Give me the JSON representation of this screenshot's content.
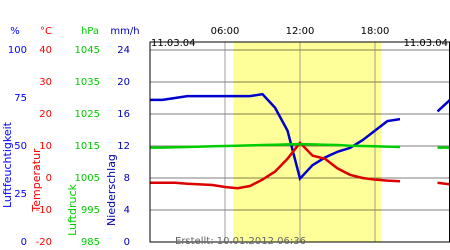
{
  "chart_data": {
    "type": "line",
    "x": [
      0,
      1,
      2,
      3,
      4,
      5,
      6,
      7,
      8,
      9,
      10,
      11,
      12,
      13,
      14,
      15,
      16,
      17,
      18,
      19,
      20,
      21,
      22,
      23,
      24
    ],
    "xlim": [
      0,
      24
    ],
    "xticks": [
      {
        "value": 6,
        "label": "06:00"
      },
      {
        "value": 12,
        "label": "12:00"
      },
      {
        "value": 18,
        "label": "18:00"
      }
    ],
    "date_labels": [
      "11.03.04",
      "11.03.04"
    ],
    "created": "Erstellt: 10.01.2012 06:36",
    "daylight": [
      6.67,
      18.5
    ],
    "axes": [
      {
        "unit": "%",
        "title": "Luftfeuchtigkeit",
        "color": "#0000ff",
        "lim": [
          0,
          100
        ],
        "ticks": [
          0,
          25,
          50,
          75,
          100
        ]
      },
      {
        "unit": "°C",
        "title": "Temperatur",
        "color": "#ff0000",
        "lim": [
          -20,
          40
        ],
        "ticks": [
          -20,
          -10,
          0,
          10,
          20,
          30,
          40
        ]
      },
      {
        "unit": "hPa",
        "title": "Luftdruck",
        "color": "#00cc00",
        "lim": [
          985,
          1045
        ],
        "ticks": [
          985,
          995,
          1005,
          1015,
          1025,
          1035,
          1045
        ]
      },
      {
        "unit": "mm/h",
        "title": "Niederschlag",
        "color": "#0000aa",
        "lim": [
          0,
          24
        ],
        "ticks": [
          0,
          4,
          8,
          12,
          16,
          20,
          24
        ]
      }
    ],
    "series": [
      {
        "axis": 0,
        "color": "#0000cc",
        "values": [
          74,
          74,
          75,
          76,
          76,
          76,
          76,
          76,
          76,
          77,
          70,
          58,
          33,
          40,
          44,
          47,
          49,
          53,
          58,
          63,
          64,
          null,
          null,
          68,
          74
        ]
      },
      {
        "axis": 1,
        "color": "#dd0000",
        "values": [
          -1.5,
          -1.5,
          -1.5,
          -1.8,
          -2,
          -2.2,
          -2.8,
          -3.2,
          -2.5,
          -0.5,
          2,
          6,
          11,
          7,
          6,
          3,
          1,
          0,
          -0.5,
          -0.8,
          -1,
          null,
          null,
          -1.5,
          -2
        ]
      },
      {
        "axis": 2,
        "color": "#00cc00",
        "values": [
          1014.5,
          1014.5,
          1014.6,
          1014.7,
          1014.8,
          1014.9,
          1015,
          1015.1,
          1015.2,
          1015.3,
          1015.4,
          1015.5,
          1015.6,
          1015.5,
          1015.4,
          1015.3,
          1015.1,
          1015,
          1014.9,
          1014.8,
          1014.7,
          null,
          null,
          1014.5,
          1014.5
        ]
      }
    ]
  }
}
